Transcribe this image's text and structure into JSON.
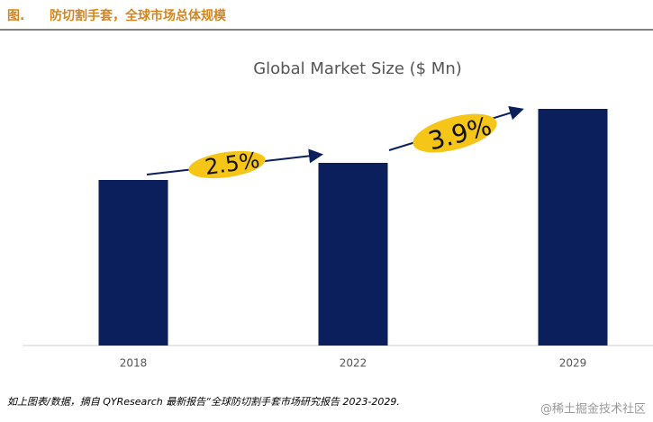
{
  "header": {
    "label": "图.",
    "title": "防切割手套，全球市场总体规模"
  },
  "chart_data": {
    "type": "bar",
    "title": "Global Market Size ($ Mn)",
    "categories": [
      "2018",
      "2022",
      "2029"
    ],
    "values": [
      184,
      203,
      263
    ],
    "color": "#0b1f5c",
    "annotations": [
      "2.5%",
      "3.9%"
    ]
  },
  "footer": {
    "source": "如上图表/数据，摘自 QYResearch 最新报告“全球防切割手套市场研究报告 2023-2029.",
    "watermark": "@稀土掘金技术社区"
  }
}
